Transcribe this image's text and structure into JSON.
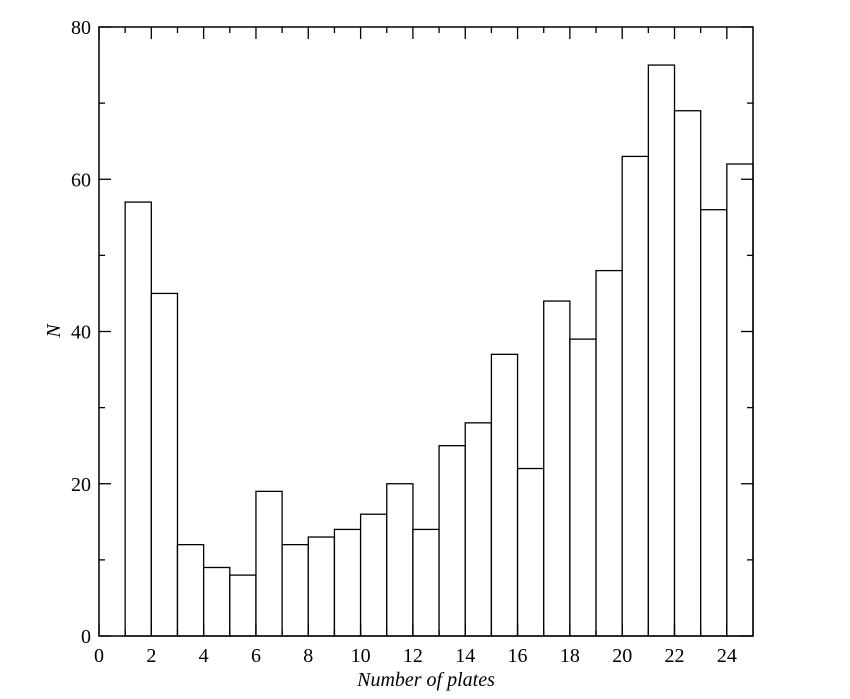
{
  "chart_data": {
    "type": "histogram",
    "xlabel": "Number of plates",
    "ylabel": "N",
    "bins": [
      1,
      2,
      3,
      4,
      5,
      6,
      7,
      8,
      9,
      10,
      11,
      12,
      13,
      14,
      15,
      16,
      17,
      18,
      19,
      20,
      21,
      22,
      23,
      24,
      25
    ],
    "values": [
      57,
      45,
      12,
      9,
      8,
      19,
      12,
      13,
      14,
      16,
      20,
      14,
      25,
      28,
      37,
      22,
      44,
      39,
      48,
      63,
      75,
      69,
      56,
      62
    ],
    "color": "#ffffff",
    "xlim": [
      0,
      25
    ],
    "ylim": [
      0,
      80
    ],
    "xticks": [
      0,
      2,
      4,
      6,
      8,
      10,
      12,
      14,
      16,
      18,
      20,
      22,
      24
    ],
    "yticks": [
      0,
      20,
      40,
      60,
      80
    ]
  }
}
